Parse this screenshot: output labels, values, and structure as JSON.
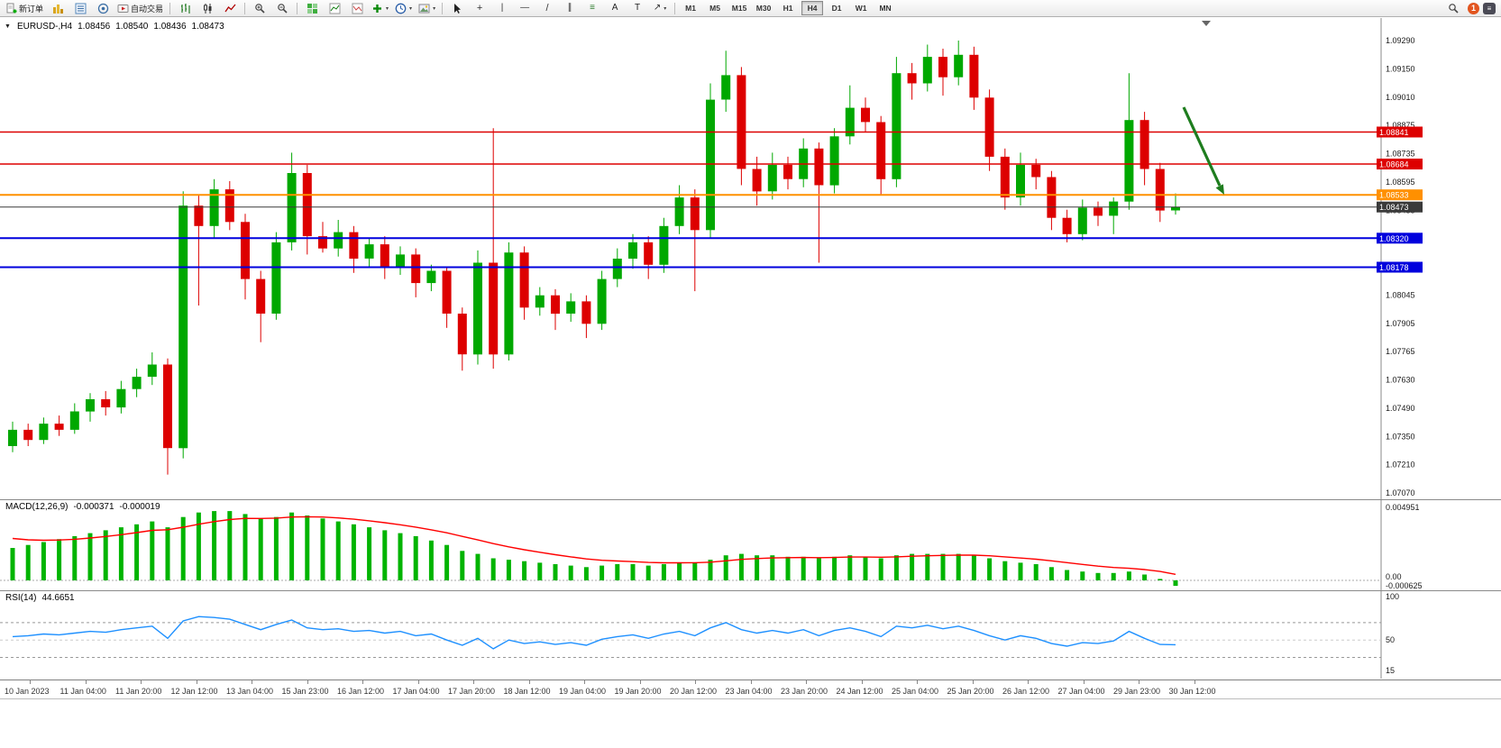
{
  "toolbar": {
    "left_buttons": [
      {
        "name": "new-order-button",
        "icon": "doc-plus",
        "label": "新订单"
      },
      {
        "name": "charts-window-button",
        "icon": "gold-bars"
      },
      {
        "name": "market-watch-button",
        "icon": "blue-list"
      },
      {
        "name": "data-window-button",
        "icon": "headset"
      },
      {
        "name": "autotrading-button",
        "icon": "autotrade",
        "label": "自动交易"
      },
      {
        "sep": true
      },
      {
        "name": "bar-chart-button",
        "icon": "bars"
      },
      {
        "name": "candlestick-chart-button",
        "icon": "candles"
      },
      {
        "name": "line-chart-button",
        "icon": "line"
      },
      {
        "sep": true
      },
      {
        "name": "zoom-in-button",
        "icon": "zoom-in"
      },
      {
        "name": "zoom-out-button",
        "icon": "zoom-out"
      },
      {
        "sep": true
      },
      {
        "name": "tile-windows-button",
        "icon": "grid"
      },
      {
        "name": "indicators-button",
        "icon": "chart-ind"
      },
      {
        "name": "templates-button",
        "icon": "chart-ind2"
      },
      {
        "name": "add-indicator-button",
        "icon": "plus-green",
        "caret": true
      },
      {
        "name": "timeframe-menu-button",
        "icon": "clock",
        "caret": true
      },
      {
        "name": "profile-menu-button",
        "icon": "image",
        "caret": true
      },
      {
        "sep": true
      },
      {
        "name": "cursor-button",
        "icon": "cursor"
      },
      {
        "name": "crosshair-button",
        "icon": "crosshair"
      },
      {
        "name": "vertical-line-button",
        "icon": "vline"
      },
      {
        "name": "horizontal-line-button",
        "icon": "hline"
      },
      {
        "name": "trendline-button",
        "icon": "trendline"
      },
      {
        "name": "channel-button",
        "icon": "channel"
      },
      {
        "name": "fibonacci-button",
        "icon": "fibo"
      },
      {
        "name": "text-button",
        "icon": "text-a"
      },
      {
        "name": "text-label-button",
        "icon": "text-t"
      },
      {
        "name": "arrows-button",
        "icon": "shapes",
        "caret": true
      },
      {
        "sep": true
      }
    ],
    "timeframes": [
      "M1",
      "M5",
      "M15",
      "M30",
      "H1",
      "H4",
      "D1",
      "W1",
      "MN"
    ],
    "active_timeframe": "H4",
    "notification_count": "1"
  },
  "chart": {
    "collapse_icon": "▼",
    "title": "EURUSD-,H4",
    "open": "1.08456",
    "high": "1.08540",
    "low": "1.08436",
    "close": "1.08473"
  },
  "macd_panel": {
    "label": "MACD(12,26,9)",
    "value_main": "-0.000371",
    "value_signal": "-0.000019"
  },
  "rsi_panel": {
    "label": "RSI(14)",
    "value": "44.6651"
  },
  "chart_data": {
    "type": "candlestick",
    "symbol": "EURUSD-",
    "period": "H4",
    "colors": {
      "up": "#00a800",
      "down": "#dd0000",
      "macd_histogram": "#00b400",
      "macd_signal": "#ff0000",
      "rsi_line": "#1e90ff",
      "arrow": "#1e7d1e",
      "bid_line": "#3a3a3a"
    },
    "price_axis_labels": [
      "1.09290",
      "1.09150",
      "1.09010",
      "1.08875",
      "1.08735",
      "1.08595",
      "1.08455",
      "1.08320",
      "1.08180",
      "1.08045",
      "1.07905",
      "1.07765",
      "1.07630",
      "1.07490",
      "1.07350",
      "1.07210",
      "1.07070"
    ],
    "price_axis_range": [
      1.0929,
      1.0707
    ],
    "candles": [
      [
        1.073,
        1.0742,
        1.0727,
        1.0738
      ],
      [
        1.0738,
        1.0741,
        1.073,
        1.0733
      ],
      [
        1.0733,
        1.0744,
        1.0731,
        1.0741
      ],
      [
        1.0741,
        1.0745,
        1.0735,
        1.0738
      ],
      [
        1.0738,
        1.0751,
        1.0736,
        1.0747
      ],
      [
        1.0747,
        1.0756,
        1.0742,
        1.0753
      ],
      [
        1.0753,
        1.0757,
        1.0745,
        1.0749
      ],
      [
        1.0749,
        1.0762,
        1.0746,
        1.0758
      ],
      [
        1.0758,
        1.0768,
        1.0754,
        1.0764
      ],
      [
        1.0764,
        1.0776,
        1.076,
        1.077
      ],
      [
        1.077,
        1.0773,
        1.0716,
        1.0729
      ],
      [
        1.0729,
        1.0855,
        1.0724,
        1.0848
      ],
      [
        1.0848,
        1.0853,
        1.0799,
        1.0838
      ],
      [
        1.0838,
        1.0861,
        1.0832,
        1.0856
      ],
      [
        1.0856,
        1.086,
        1.0836,
        1.084
      ],
      [
        1.084,
        1.0844,
        1.0802,
        1.0812
      ],
      [
        1.0812,
        1.0816,
        1.0781,
        1.0795
      ],
      [
        1.0795,
        1.0835,
        1.0792,
        1.083
      ],
      [
        1.083,
        1.0874,
        1.0826,
        1.0864
      ],
      [
        1.0864,
        1.0868,
        1.0824,
        1.0833
      ],
      [
        1.0833,
        1.084,
        1.0825,
        1.0827
      ],
      [
        1.0827,
        1.0841,
        1.0823,
        1.0835
      ],
      [
        1.0835,
        1.0838,
        1.0815,
        1.0822
      ],
      [
        1.0822,
        1.0832,
        1.0818,
        1.0829
      ],
      [
        1.0829,
        1.0833,
        1.0812,
        1.0818
      ],
      [
        1.0818,
        1.0828,
        1.0814,
        1.0824
      ],
      [
        1.0824,
        1.0827,
        1.0803,
        1.081
      ],
      [
        1.081,
        1.0819,
        1.0806,
        1.0816
      ],
      [
        1.0816,
        1.0818,
        1.0788,
        1.0795
      ],
      [
        1.0795,
        1.0798,
        1.0767,
        1.0775
      ],
      [
        1.0775,
        1.0826,
        1.077,
        1.082
      ],
      [
        1.082,
        1.0886,
        1.0768,
        1.0775
      ],
      [
        1.0775,
        1.083,
        1.0772,
        1.0825
      ],
      [
        1.0825,
        1.0828,
        1.0792,
        1.0798
      ],
      [
        1.0798,
        1.0808,
        1.0794,
        1.0804
      ],
      [
        1.0804,
        1.0807,
        1.0787,
        1.0795
      ],
      [
        1.0795,
        1.0805,
        1.0791,
        1.0801
      ],
      [
        1.0801,
        1.0804,
        1.0783,
        1.079
      ],
      [
        1.079,
        1.0816,
        1.0787,
        1.0812
      ],
      [
        1.0812,
        1.0827,
        1.0808,
        1.0822
      ],
      [
        1.0822,
        1.0834,
        1.0817,
        1.083
      ],
      [
        1.083,
        1.0833,
        1.0812,
        1.0819
      ],
      [
        1.0819,
        1.0842,
        1.0815,
        1.0838
      ],
      [
        1.0838,
        1.0858,
        1.0834,
        1.0852
      ],
      [
        1.0852,
        1.0856,
        1.0806,
        1.0836
      ],
      [
        1.0836,
        1.0908,
        1.0832,
        1.09
      ],
      [
        1.09,
        1.0924,
        1.0894,
        1.0912
      ],
      [
        1.0912,
        1.0916,
        1.0858,
        1.0866
      ],
      [
        1.0866,
        1.0872,
        1.0848,
        1.0855
      ],
      [
        1.0855,
        1.0874,
        1.0851,
        1.0868
      ],
      [
        1.0868,
        1.0872,
        1.0856,
        1.0861
      ],
      [
        1.0861,
        1.0881,
        1.0857,
        1.0876
      ],
      [
        1.0876,
        1.0879,
        1.082,
        1.0858
      ],
      [
        1.0858,
        1.0886,
        1.0854,
        1.0882
      ],
      [
        1.0882,
        1.0907,
        1.0878,
        1.0896
      ],
      [
        1.0896,
        1.0901,
        1.0884,
        1.0889
      ],
      [
        1.0889,
        1.0892,
        1.0853,
        1.0861
      ],
      [
        1.0861,
        1.0921,
        1.0857,
        1.0913
      ],
      [
        1.0913,
        1.0918,
        1.09,
        1.0908
      ],
      [
        1.0908,
        1.0927,
        1.0904,
        1.0921
      ],
      [
        1.0921,
        1.0925,
        1.0902,
        1.0911
      ],
      [
        1.0911,
        1.0929,
        1.0907,
        1.0922
      ],
      [
        1.0922,
        1.0926,
        1.0895,
        1.0901
      ],
      [
        1.0901,
        1.0905,
        1.0865,
        1.0872
      ],
      [
        1.0872,
        1.0876,
        1.0846,
        1.0852
      ],
      [
        1.0852,
        1.0874,
        1.0848,
        1.0868
      ],
      [
        1.0868,
        1.0871,
        1.0856,
        1.0862
      ],
      [
        1.0862,
        1.0865,
        1.0836,
        1.0842
      ],
      [
        1.0842,
        1.0846,
        1.083,
        1.0834
      ],
      [
        1.0834,
        1.0851,
        1.0831,
        1.0847
      ],
      [
        1.0847,
        1.085,
        1.0838,
        1.0843
      ],
      [
        1.0843,
        1.0852,
        1.0834,
        1.085
      ],
      [
        1.085,
        1.0913,
        1.0846,
        1.089
      ],
      [
        1.089,
        1.0894,
        1.0858,
        1.0866
      ],
      [
        1.0866,
        1.0869,
        1.084,
        1.08456
      ],
      [
        1.08456,
        1.0854,
        1.08436,
        1.08473
      ]
    ],
    "hlines": [
      {
        "price": 1.08841,
        "label": "1.08841",
        "color": "#dd0000",
        "width": 1.5
      },
      {
        "price": 1.08684,
        "label": "1.08684",
        "color": "#dd0000",
        "width": 1.5
      },
      {
        "price": 1.08533,
        "label": "1.08533",
        "color": "#ff9000",
        "width": 2
      },
      {
        "price": 1.08473,
        "label": "1.08473",
        "color": "#3a3a3a",
        "width": 1
      },
      {
        "price": 1.0832,
        "label": "1.08320",
        "color": "#0000dd",
        "width": 2
      },
      {
        "price": 1.08178,
        "label": "1.08178",
        "color": "#0000dd",
        "width": 2
      }
    ],
    "arrow": {
      "color": "#1e7d1e",
      "direction": "down-right"
    },
    "macd": {
      "histogram": [
        0.0022,
        0.0024,
        0.0026,
        0.0028,
        0.003,
        0.0032,
        0.0034,
        0.0036,
        0.0038,
        0.004,
        0.0036,
        0.0043,
        0.0046,
        0.0047,
        0.0047,
        0.0045,
        0.0042,
        0.0043,
        0.0046,
        0.0044,
        0.0042,
        0.004,
        0.0038,
        0.0036,
        0.0034,
        0.0032,
        0.003,
        0.0027,
        0.0024,
        0.002,
        0.0018,
        0.0015,
        0.0014,
        0.0013,
        0.0012,
        0.0011,
        0.001,
        0.0009,
        0.001,
        0.0011,
        0.0011,
        0.001,
        0.0011,
        0.0012,
        0.0012,
        0.0014,
        0.0017,
        0.0018,
        0.0017,
        0.0017,
        0.0016,
        0.0016,
        0.0015,
        0.0016,
        0.0017,
        0.0016,
        0.0015,
        0.0017,
        0.0018,
        0.0018,
        0.0018,
        0.0018,
        0.0017,
        0.0015,
        0.0013,
        0.0012,
        0.0011,
        0.0009,
        0.0007,
        0.0006,
        0.0005,
        0.0005,
        0.0006,
        0.0004,
        0.0001,
        -0.000371
      ],
      "axis_labels": [
        "0.004951",
        "0.00",
        "-0.000625"
      ]
    },
    "rsi": {
      "values": [
        54,
        55,
        57,
        56,
        58,
        60,
        59,
        62,
        64,
        66,
        52,
        72,
        77,
        76,
        74,
        68,
        62,
        68,
        73,
        64,
        62,
        63,
        60,
        61,
        58,
        60,
        55,
        57,
        50,
        44,
        52,
        40,
        50,
        46,
        48,
        45,
        47,
        44,
        51,
        54,
        56,
        52,
        57,
        60,
        55,
        64,
        70,
        62,
        58,
        61,
        58,
        62,
        55,
        61,
        64,
        60,
        54,
        66,
        64,
        67,
        63,
        66,
        61,
        55,
        50,
        55,
        52,
        46,
        43,
        47,
        46,
        49,
        60,
        52,
        45,
        44.6651
      ],
      "levels": [
        70,
        50,
        30
      ],
      "axis_labels": [
        "100",
        "50",
        "15"
      ]
    },
    "time_labels": [
      "10 Jan 2023",
      "11 Jan 04:00",
      "11 Jan 20:00",
      "12 Jan 12:00",
      "13 Jan 04:00",
      "15 Jan 23:00",
      "16 Jan 12:00",
      "17 Jan 04:00",
      "17 Jan 20:00",
      "18 Jan 12:00",
      "19 Jan 04:00",
      "19 Jan 20:00",
      "20 Jan 12:00",
      "23 Jan 04:00",
      "23 Jan 20:00",
      "24 Jan 12:00",
      "25 Jan 04:00",
      "25 Jan 20:00",
      "26 Jan 12:00",
      "27 Jan 04:00",
      "29 Jan 23:00",
      "30 Jan 12:00"
    ]
  }
}
